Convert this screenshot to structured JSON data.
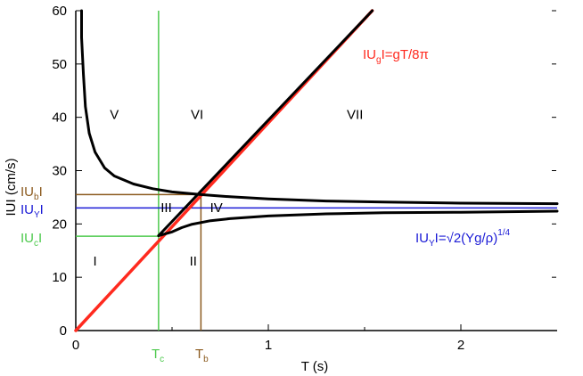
{
  "chart_data": {
    "type": "line",
    "xlabel": "T (s)",
    "ylabel": "IUI (cm/s)",
    "xlim": [
      0,
      2.5
    ],
    "ylim": [
      0,
      60
    ],
    "x_ticks": [
      0,
      1,
      2
    ],
    "y_ticks": [
      0,
      10,
      20,
      30,
      40,
      50,
      60
    ],
    "x_tick_labels": [
      "0",
      "1",
      "2"
    ],
    "y_tick_labels": [
      "0",
      "10",
      "20",
      "30",
      "40",
      "50",
      "60"
    ],
    "grid": false,
    "colors": {
      "red": "#ff2a1f",
      "blue": "#1b1bd6",
      "green": "#4cc94c",
      "brown": "#8b5a1e",
      "black": "#000000"
    },
    "series": [
      {
        "name": "IUgI=gT/8π",
        "color": "#ff2a1f",
        "x": [
          0,
          1.54
        ],
        "y": [
          0,
          60
        ]
      },
      {
        "name": "",
        "color": "#000000",
        "x": [
          0.03,
          0.03,
          0.04,
          0.05,
          0.07,
          0.1,
          0.15,
          0.2,
          0.3,
          0.4,
          0.5,
          0.65,
          0.8,
          1.0,
          1.3,
          1.6,
          2.0,
          2.5
        ],
        "y": [
          60,
          55,
          48,
          42,
          37,
          33.5,
          30.5,
          29,
          27.5,
          26.6,
          26.0,
          25.5,
          25.1,
          24.7,
          24.3,
          24.1,
          23.9,
          23.8
        ]
      },
      {
        "name": "",
        "color": "#000000",
        "x": [
          0.43,
          0.5,
          0.55,
          0.6,
          0.7,
          0.8,
          1.0,
          1.3,
          1.6,
          2.0,
          2.5
        ],
        "y": [
          17.8,
          18.5,
          19.3,
          19.9,
          20.6,
          21.0,
          21.5,
          21.9,
          22.1,
          22.2,
          22.4
        ]
      },
      {
        "name": "",
        "color": "#000000",
        "x": [
          0.43,
          1.54
        ],
        "y": [
          17.8,
          60
        ]
      }
    ],
    "reference_lines": {
      "horizontal": [
        {
          "label": "IUYI",
          "value": 23,
          "color": "#1b1bd6",
          "x_from": 0,
          "x_to": 2.5
        },
        {
          "label": "IUbI",
          "value": 25.5,
          "color": "#8b5a1e",
          "x_from": 0,
          "x_to": 0.65
        },
        {
          "label": "IUcI",
          "value": 17.7,
          "color": "#4cc94c",
          "x_from": 0,
          "x_to": 0.43
        }
      ],
      "vertical": [
        {
          "label": "Tc",
          "value": 0.43,
          "color": "#4cc94c",
          "y_from": 0,
          "y_to": 60
        },
        {
          "label": "Tb",
          "value": 0.65,
          "color": "#8b5a1e",
          "y_from": 0,
          "y_to": 25.5
        }
      ]
    },
    "annotations": [
      {
        "text": "IUgI=gT/8π",
        "color": "#ff2a1f"
      },
      {
        "text": "IUYI=√2(Yg/ρ)",
        "superscript": "1/4",
        "color": "#1b1bd6"
      }
    ],
    "regions": [
      {
        "label": "I",
        "x": 0.1,
        "y": 12.2
      },
      {
        "label": "II",
        "x": 0.61,
        "y": 12.2
      },
      {
        "label": "III",
        "x": 0.47,
        "y": 22.2
      },
      {
        "label": "IV",
        "x": 0.73,
        "y": 22.2
      },
      {
        "label": "V",
        "x": 0.2,
        "y": 39.7
      },
      {
        "label": "VI",
        "x": 0.63,
        "y": 39.7
      },
      {
        "label": "VII",
        "x": 1.45,
        "y": 39.7
      }
    ]
  }
}
